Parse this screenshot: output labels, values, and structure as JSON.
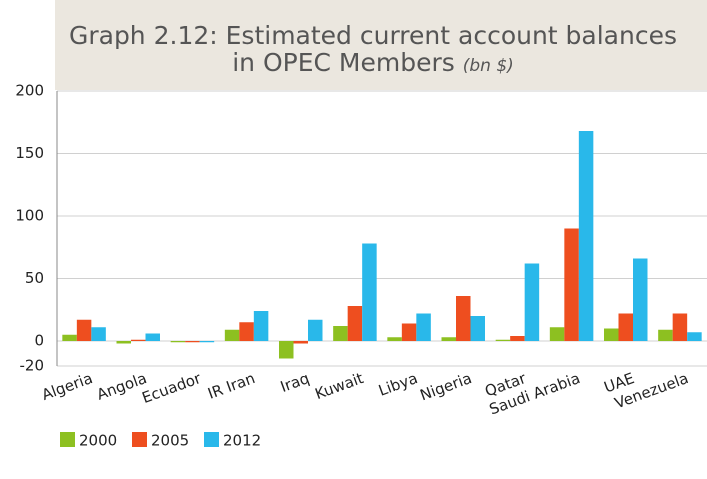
{
  "chart_data": {
    "type": "bar",
    "title": "Graph 2.12: Estimated current account balances in OPEC Members",
    "unit": "(bn $)",
    "categories": [
      "Algeria",
      "Angola",
      "Ecuador",
      "IR Iran",
      "Iraq",
      "Kuwait",
      "Libya",
      "Nigeria",
      "Qatar",
      "Saudi Arabia",
      "UAE",
      "Venezuela"
    ],
    "series": [
      {
        "name": "2000",
        "color": "#8dc021",
        "values": [
          5,
          -2,
          -1,
          9,
          -14,
          12,
          3,
          3,
          1,
          11,
          10,
          9
        ]
      },
      {
        "name": "2005",
        "color": "#ee4e1f",
        "values": [
          17,
          1,
          -1,
          15,
          -2,
          28,
          14,
          36,
          4,
          90,
          22,
          22
        ]
      },
      {
        "name": "2012",
        "color": "#29b8ea",
        "values": [
          11,
          6,
          -1,
          24,
          17,
          78,
          22,
          20,
          62,
          168,
          66,
          7
        ]
      }
    ],
    "ylim": [
      -20,
      200
    ],
    "yticks": [
      -20,
      0,
      50,
      100,
      150,
      200
    ],
    "grid": true
  }
}
